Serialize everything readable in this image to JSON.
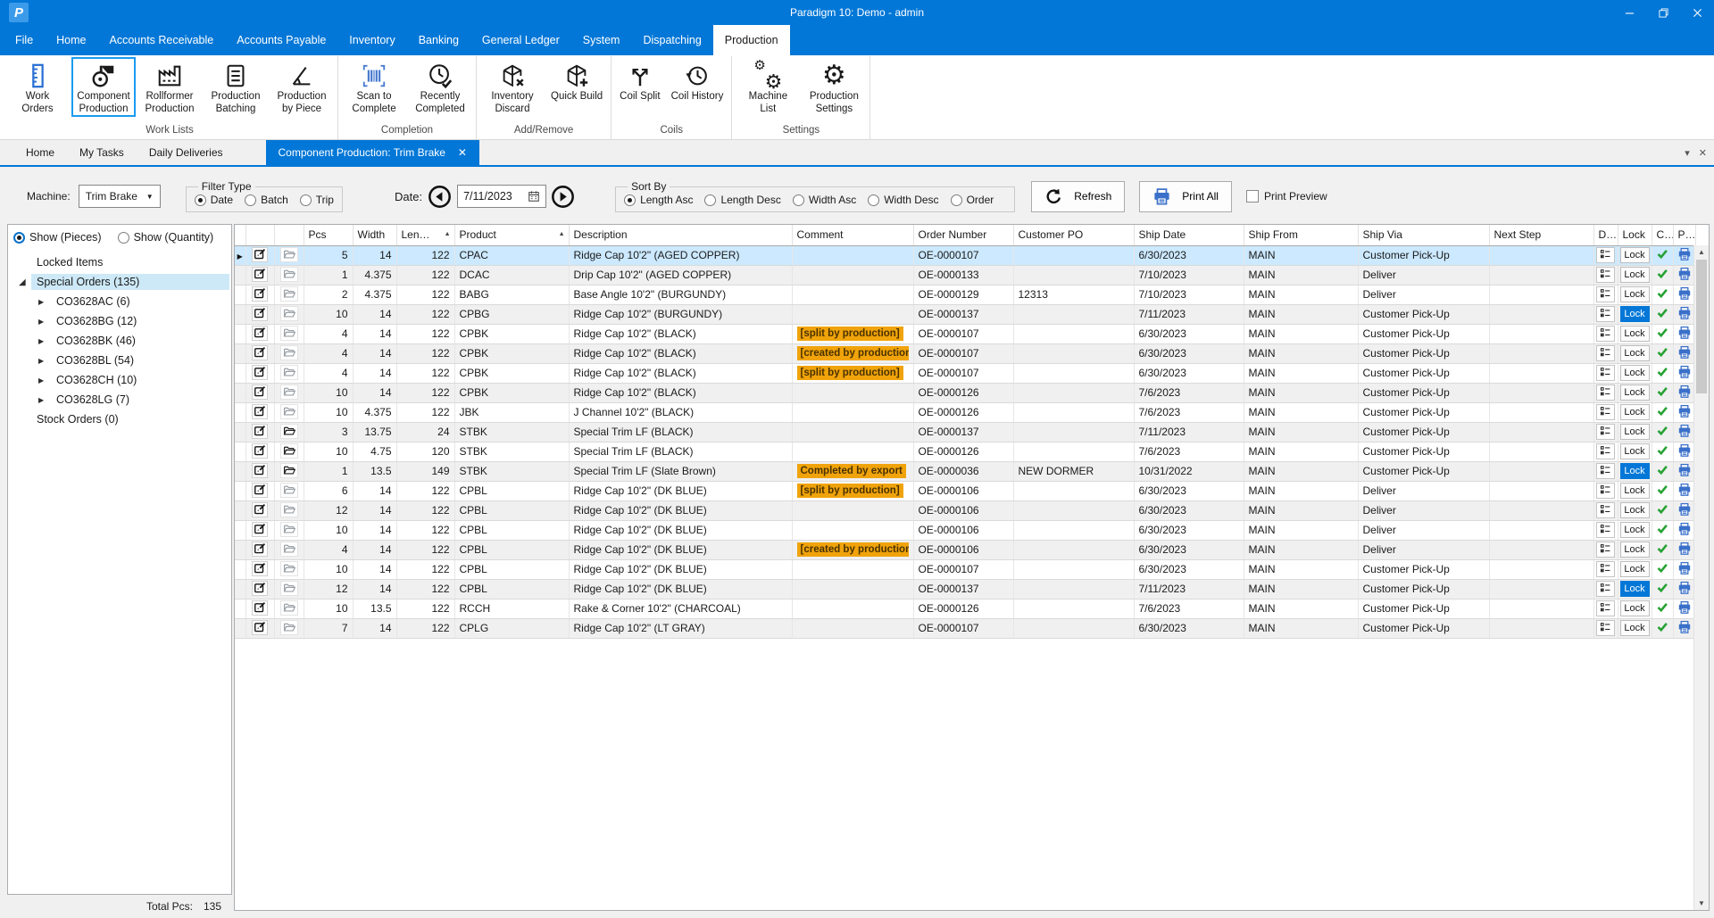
{
  "colors": {
    "accent": "#0277d7",
    "highlight": "#1a9bf0",
    "selection": "#cce9ff",
    "tree_selection": "#cde9f7",
    "badge_bg": "#f0a30a",
    "badge_text": "#4a3200",
    "check_green": "#27a234",
    "printer_blue": "#3a70c9"
  },
  "window": {
    "logo": "P",
    "title": "Paradigm 10: Demo - admin"
  },
  "menu": {
    "items": [
      {
        "label": "File"
      },
      {
        "label": "Home"
      },
      {
        "label": "Accounts Receivable"
      },
      {
        "label": "Accounts Payable"
      },
      {
        "label": "Inventory"
      },
      {
        "label": "Banking"
      },
      {
        "label": "General Ledger"
      },
      {
        "label": "System"
      },
      {
        "label": "Dispatching"
      },
      {
        "label": "Production",
        "active": true
      }
    ]
  },
  "ribbon": {
    "groups": [
      {
        "label": "Work Lists",
        "buttons": [
          {
            "label": "Work Orders",
            "icon": "ruler-icon"
          },
          {
            "label": "Component Production",
            "icon": "coil-icon",
            "highlighted": true
          },
          {
            "label": "Rollformer Production",
            "icon": "factory-icon"
          },
          {
            "label": "Production Batching",
            "icon": "batch-list-icon"
          },
          {
            "label": "Production by Piece",
            "icon": "angle-icon"
          }
        ]
      },
      {
        "label": "Completion",
        "buttons": [
          {
            "label": "Scan to Complete",
            "icon": "barcode-icon"
          },
          {
            "label": "Recently Completed",
            "icon": "clock-check-icon"
          }
        ]
      },
      {
        "label": "Add/Remove",
        "buttons": [
          {
            "label": "Inventory Discard",
            "icon": "box-discard-icon"
          },
          {
            "label": "Quick Build",
            "icon": "box-add-icon"
          }
        ]
      },
      {
        "label": "Coils",
        "buttons": [
          {
            "label": "Coil Split",
            "icon": "split-icon"
          },
          {
            "label": "Coil History",
            "icon": "history-icon"
          }
        ]
      },
      {
        "label": "Settings",
        "buttons": [
          {
            "label": "Machine List",
            "icon": "gears-icon"
          },
          {
            "label": "Production Settings",
            "icon": "gear-icon"
          }
        ]
      }
    ]
  },
  "tabs": {
    "items": [
      {
        "label": "Home"
      },
      {
        "label": "My Tasks"
      },
      {
        "label": "Daily Deliveries"
      },
      {
        "label": "Component Production: Trim Brake",
        "active": true,
        "closable": true
      }
    ]
  },
  "toolbar": {
    "machine_label": "Machine:",
    "machine_value": "Trim Brake",
    "filter_type": {
      "label": "Filter Type",
      "options": [
        {
          "label": "Date",
          "selected": true
        },
        {
          "label": "Batch"
        },
        {
          "label": "Trip"
        }
      ]
    },
    "date_label": "Date:",
    "date_value": "7/11/2023",
    "sort_by": {
      "label": "Sort By",
      "options": [
        {
          "label": "Length Asc",
          "selected": true
        },
        {
          "label": "Length Desc"
        },
        {
          "label": "Width Asc"
        },
        {
          "label": "Width Desc"
        },
        {
          "label": "Order"
        }
      ]
    },
    "refresh_label": "Refresh",
    "print_all_label": "Print All",
    "print_preview_label": "Print Preview",
    "print_preview_checked": false
  },
  "sidebar": {
    "show_options": [
      {
        "label": "Show (Pieces)",
        "selected": true
      },
      {
        "label": "Show (Quantity)"
      }
    ],
    "tree": [
      {
        "label": "Locked Items",
        "level": 0,
        "state": "none"
      },
      {
        "label": "Special Orders (135)",
        "level": 0,
        "state": "expanded",
        "selected": true
      },
      {
        "label": "CO3628AC (6)",
        "level": 1,
        "state": "collapsed"
      },
      {
        "label": "CO3628BG (12)",
        "level": 1,
        "state": "collapsed"
      },
      {
        "label": "CO3628BK (46)",
        "level": 1,
        "state": "collapsed"
      },
      {
        "label": "CO3628BL (54)",
        "level": 1,
        "state": "collapsed"
      },
      {
        "label": "CO3628CH (10)",
        "level": 1,
        "state": "collapsed"
      },
      {
        "label": "CO3628LG (7)",
        "level": 1,
        "state": "collapsed"
      },
      {
        "label": "Stock Orders (0)",
        "level": 0,
        "state": "none"
      }
    ],
    "total_label": "Total Pcs:",
    "total_value": "135"
  },
  "grid": {
    "lock_label": "Lock",
    "columns": [
      {
        "label": ""
      },
      {
        "label": ""
      },
      {
        "label": ""
      },
      {
        "label": "Pcs",
        "align": "right"
      },
      {
        "label": "Width",
        "align": "right"
      },
      {
        "label": "Len…",
        "align": "right",
        "sort": "asc"
      },
      {
        "label": "Product",
        "sort": "asc"
      },
      {
        "label": "Description"
      },
      {
        "label": "Comment"
      },
      {
        "label": "Order Number"
      },
      {
        "label": "Customer PO"
      },
      {
        "label": "Ship Date"
      },
      {
        "label": "Ship From"
      },
      {
        "label": "Ship Via"
      },
      {
        "label": "Next Step"
      },
      {
        "label": "D…"
      },
      {
        "label": "Lock"
      },
      {
        "label": "C…"
      },
      {
        "label": "P…"
      }
    ],
    "rows": [
      {
        "pcs": "5",
        "width": "14",
        "len": "122",
        "product": "CPAC",
        "description": "Ridge Cap 10'2\" (AGED COPPER)",
        "comment": "",
        "order_number": "OE-0000107",
        "customer_po": "",
        "ship_date": "6/30/2023",
        "ship_from": "MAIN",
        "ship_via": "Customer Pick-Up",
        "next_step": "",
        "selected": true
      },
      {
        "pcs": "1",
        "width": "4.375",
        "len": "122",
        "product": "DCAC",
        "description": "Drip Cap 10'2\" (AGED COPPER)",
        "comment": "",
        "order_number": "OE-0000133",
        "customer_po": "",
        "ship_date": "7/10/2023",
        "ship_from": "MAIN",
        "ship_via": "Deliver",
        "next_step": ""
      },
      {
        "pcs": "2",
        "width": "4.375",
        "len": "122",
        "product": "BABG",
        "description": "Base Angle 10'2\" (BURGUNDY)",
        "comment": "",
        "order_number": "OE-0000129",
        "customer_po": "12313",
        "ship_date": "7/10/2023",
        "ship_from": "MAIN",
        "ship_via": "Deliver",
        "next_step": ""
      },
      {
        "pcs": "10",
        "width": "14",
        "len": "122",
        "product": "CPBG",
        "description": "Ridge Cap 10'2\" (BURGUNDY)",
        "comment": "",
        "order_number": "OE-0000137",
        "customer_po": "",
        "ship_date": "7/11/2023",
        "ship_from": "MAIN",
        "ship_via": "Customer Pick-Up",
        "next_step": "",
        "lock_active": true
      },
      {
        "pcs": "4",
        "width": "14",
        "len": "122",
        "product": "CPBK",
        "description": "Ridge Cap 10'2\" (BLACK)",
        "comment": "[split by production]",
        "order_number": "OE-0000107",
        "customer_po": "",
        "ship_date": "6/30/2023",
        "ship_from": "MAIN",
        "ship_via": "Customer Pick-Up",
        "next_step": ""
      },
      {
        "pcs": "4",
        "width": "14",
        "len": "122",
        "product": "CPBK",
        "description": "Ridge Cap 10'2\" (BLACK)",
        "comment": "[created by production]",
        "order_number": "OE-0000107",
        "customer_po": "",
        "ship_date": "6/30/2023",
        "ship_from": "MAIN",
        "ship_via": "Customer Pick-Up",
        "next_step": ""
      },
      {
        "pcs": "4",
        "width": "14",
        "len": "122",
        "product": "CPBK",
        "description": "Ridge Cap 10'2\" (BLACK)",
        "comment": "[split by production]",
        "order_number": "OE-0000107",
        "customer_po": "",
        "ship_date": "6/30/2023",
        "ship_from": "MAIN",
        "ship_via": "Customer Pick-Up",
        "next_step": ""
      },
      {
        "pcs": "10",
        "width": "14",
        "len": "122",
        "product": "CPBK",
        "description": "Ridge Cap 10'2\" (BLACK)",
        "comment": "",
        "order_number": "OE-0000126",
        "customer_po": "",
        "ship_date": "7/6/2023",
        "ship_from": "MAIN",
        "ship_via": "Customer Pick-Up",
        "next_step": ""
      },
      {
        "pcs": "10",
        "width": "4.375",
        "len": "122",
        "product": "JBK",
        "description": "J Channel 10'2\" (BLACK)",
        "comment": "",
        "order_number": "OE-0000126",
        "customer_po": "",
        "ship_date": "7/6/2023",
        "ship_from": "MAIN",
        "ship_via": "Customer Pick-Up",
        "next_step": ""
      },
      {
        "pcs": "3",
        "width": "13.75",
        "len": "24",
        "product": "STBK",
        "description": "Special Trim LF (BLACK)",
        "comment": "",
        "order_number": "OE-0000137",
        "customer_po": "",
        "ship_date": "7/11/2023",
        "ship_from": "MAIN",
        "ship_via": "Customer Pick-Up",
        "next_step": "",
        "dark_folder": true
      },
      {
        "pcs": "10",
        "width": "4.75",
        "len": "120",
        "product": "STBK",
        "description": "Special Trim LF (BLACK)",
        "comment": "",
        "order_number": "OE-0000126",
        "customer_po": "",
        "ship_date": "7/6/2023",
        "ship_from": "MAIN",
        "ship_via": "Customer Pick-Up",
        "next_step": "",
        "dark_folder": true
      },
      {
        "pcs": "1",
        "width": "13.5",
        "len": "149",
        "product": "STBK",
        "description": "Special Trim LF (Slate Brown)",
        "comment": "Completed by export",
        "order_number": "OE-0000036",
        "customer_po": "NEW DORMER",
        "ship_date": "10/31/2022",
        "ship_from": "MAIN",
        "ship_via": "Customer Pick-Up",
        "next_step": "",
        "dark_folder": true,
        "lock_active": true
      },
      {
        "pcs": "6",
        "width": "14",
        "len": "122",
        "product": "CPBL",
        "description": "Ridge Cap 10'2\" (DK BLUE)",
        "comment": "[split by production]",
        "order_number": "OE-0000106",
        "customer_po": "",
        "ship_date": "6/30/2023",
        "ship_from": "MAIN",
        "ship_via": "Deliver",
        "next_step": ""
      },
      {
        "pcs": "12",
        "width": "14",
        "len": "122",
        "product": "CPBL",
        "description": "Ridge Cap 10'2\" (DK BLUE)",
        "comment": "",
        "order_number": "OE-0000106",
        "customer_po": "",
        "ship_date": "6/30/2023",
        "ship_from": "MAIN",
        "ship_via": "Deliver",
        "next_step": ""
      },
      {
        "pcs": "10",
        "width": "14",
        "len": "122",
        "product": "CPBL",
        "description": "Ridge Cap 10'2\" (DK BLUE)",
        "comment": "",
        "order_number": "OE-0000106",
        "customer_po": "",
        "ship_date": "6/30/2023",
        "ship_from": "MAIN",
        "ship_via": "Deliver",
        "next_step": ""
      },
      {
        "pcs": "4",
        "width": "14",
        "len": "122",
        "product": "CPBL",
        "description": "Ridge Cap 10'2\" (DK BLUE)",
        "comment": "[created by production]",
        "order_number": "OE-0000106",
        "customer_po": "",
        "ship_date": "6/30/2023",
        "ship_from": "MAIN",
        "ship_via": "Deliver",
        "next_step": ""
      },
      {
        "pcs": "10",
        "width": "14",
        "len": "122",
        "product": "CPBL",
        "description": "Ridge Cap 10'2\" (DK BLUE)",
        "comment": "",
        "order_number": "OE-0000107",
        "customer_po": "",
        "ship_date": "6/30/2023",
        "ship_from": "MAIN",
        "ship_via": "Customer Pick-Up",
        "next_step": ""
      },
      {
        "pcs": "12",
        "width": "14",
        "len": "122",
        "product": "CPBL",
        "description": "Ridge Cap 10'2\" (DK BLUE)",
        "comment": "",
        "order_number": "OE-0000137",
        "customer_po": "",
        "ship_date": "7/11/2023",
        "ship_from": "MAIN",
        "ship_via": "Customer Pick-Up",
        "next_step": "",
        "lock_active": true
      },
      {
        "pcs": "10",
        "width": "13.5",
        "len": "122",
        "product": "RCCH",
        "description": "Rake & Corner 10'2\" (CHARCOAL)",
        "comment": "",
        "order_number": "OE-0000126",
        "customer_po": "",
        "ship_date": "7/6/2023",
        "ship_from": "MAIN",
        "ship_via": "Customer Pick-Up",
        "next_step": ""
      },
      {
        "pcs": "7",
        "width": "14",
        "len": "122",
        "product": "CPLG",
        "description": "Ridge Cap 10'2\" (LT GRAY)",
        "comment": "",
        "order_number": "OE-0000107",
        "customer_po": "",
        "ship_date": "6/30/2023",
        "ship_from": "MAIN",
        "ship_via": "Customer Pick-Up",
        "next_step": ""
      }
    ]
  }
}
